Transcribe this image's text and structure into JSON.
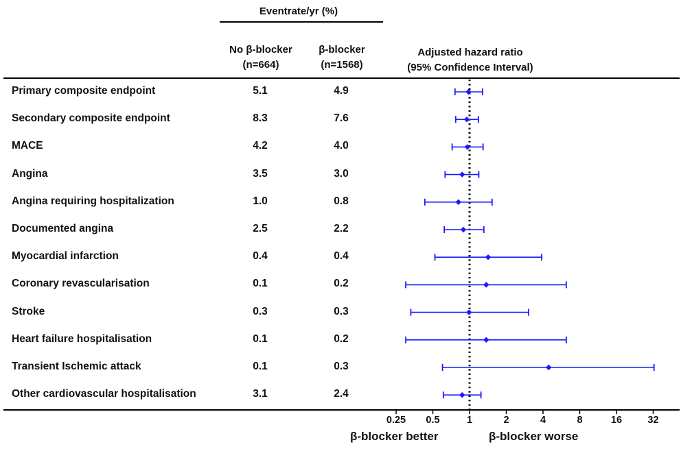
{
  "header": {
    "group_title": "Eventrate/yr (%)",
    "col1_line1": "No β-blocker",
    "col1_line2": "(n=664)",
    "col2_line1": "β-blocker",
    "col2_line2": "(n=1568)",
    "col3_line1": "Adjusted hazard ratio",
    "col3_line2": "(95% Confidence Interval)"
  },
  "footer": {
    "left_label": "β-blocker better",
    "right_label": "β-blocker worse"
  },
  "colors": {
    "marker": "#1a1aff",
    "axis": "#000000"
  },
  "chart_data": {
    "type": "forest",
    "xscale": "log2",
    "xlim": [
      0.25,
      32
    ],
    "reference_line": 1,
    "x_ticks": [
      0.25,
      0.5,
      1,
      2,
      4,
      8,
      16,
      32
    ],
    "x_tick_labels": [
      "0.25",
      "0.5",
      "1",
      "2",
      "4",
      "8",
      "16",
      "32"
    ],
    "rows": [
      {
        "label": "Primary composite endpoint",
        "no_bb": "5.1",
        "bb": "4.9",
        "hr": 0.98,
        "lo": 0.76,
        "hi": 1.28
      },
      {
        "label": "Secondary composite endpoint",
        "no_bb": "8.3",
        "bb": "7.6",
        "hr": 0.95,
        "lo": 0.77,
        "hi": 1.18
      },
      {
        "label": "MACE",
        "no_bb": "4.2",
        "bb": "4.0",
        "hr": 0.96,
        "lo": 0.72,
        "hi": 1.29
      },
      {
        "label": "Angina",
        "no_bb": "3.5",
        "bb": "3.0",
        "hr": 0.87,
        "lo": 0.63,
        "hi": 1.19
      },
      {
        "label": "Angina requiring hospitalization",
        "no_bb": "1.0",
        "bb": "0.8",
        "hr": 0.81,
        "lo": 0.43,
        "hi": 1.53
      },
      {
        "label": "Documented angina",
        "no_bb": "2.5",
        "bb": "2.2",
        "hr": 0.89,
        "lo": 0.62,
        "hi": 1.31
      },
      {
        "label": "Myocardial infarction",
        "no_bb": "0.4",
        "bb": "0.4",
        "hr": 1.42,
        "lo": 0.52,
        "hi": 3.9
      },
      {
        "label": "Coronary revascularisation",
        "no_bb": "0.1",
        "bb": "0.2",
        "hr": 1.37,
        "lo": 0.3,
        "hi": 6.2
      },
      {
        "label": "Stroke",
        "no_bb": "0.3",
        "bb": "0.3",
        "hr": 0.99,
        "lo": 0.33,
        "hi": 3.05
      },
      {
        "label": "Heart failure hospitalisation",
        "no_bb": "0.1",
        "bb": "0.2",
        "hr": 1.37,
        "lo": 0.3,
        "hi": 6.2
      },
      {
        "label": "Transient Ischemic attack",
        "no_bb": "0.1",
        "bb": "0.3",
        "hr": 4.45,
        "lo": 0.6,
        "hi": 32.5
      },
      {
        "label": "Other cardiovascular hospitalisation",
        "no_bb": "3.1",
        "bb": "2.4",
        "hr": 0.87,
        "lo": 0.61,
        "hi": 1.24
      }
    ]
  }
}
